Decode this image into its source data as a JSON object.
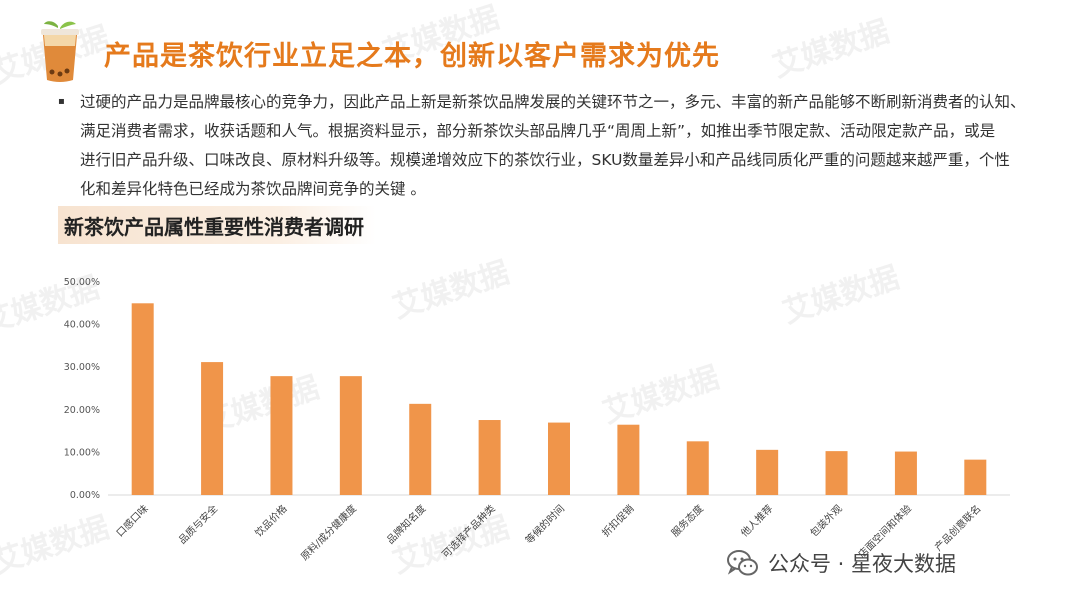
{
  "header": {
    "title": "产品是茶饮行业立足之本，创新以客户需求为优先"
  },
  "intro": {
    "bullet": "▪",
    "lines": [
      "过硬的产品力是品牌最核心的竞争力，因此产品上新是新茶饮品牌发展的关键环节之一，多元、丰富的新产品能够不断刷新消费者的认知、",
      "满足消费者需求，收获话题和人气。根据资料显示，部分新茶饮头部品牌几乎“周周上新”，如推出季节限定款、活动限定款产品，或是",
      "进行旧产品升级、口味改良、原材料升级等。规模递增效应下的茶饮行业，SKU数量差异小和产品线同质化严重的问题越来越严重，个性",
      "化和差异化特色已经成为茶饮品牌间竞争的关键 。"
    ]
  },
  "section": {
    "label": "新茶饮产品属性重要性消费者调研"
  },
  "chart_data": {
    "type": "bar",
    "title": "",
    "xlabel": "",
    "ylabel": "",
    "ylim": [
      0,
      50
    ],
    "yticks": [
      "0.00%",
      "10.00%",
      "20.00%",
      "30.00%",
      "40.00%",
      "50.00%"
    ],
    "categories": [
      "口感口味",
      "品质与安全",
      "饮品价格",
      "原料/成分健康度",
      "品牌知名度",
      "可选择产品种类",
      "等候的时间",
      "折扣促销",
      "服务态度",
      "他人推荐",
      "包装外观",
      "店面空间和体验",
      "产品创意联名"
    ],
    "values": [
      45.0,
      31.2,
      27.9,
      27.9,
      21.4,
      17.6,
      17.0,
      16.5,
      12.6,
      10.6,
      10.3,
      10.2,
      8.3
    ],
    "bar_color": "#f0954a",
    "grid": false,
    "legend": "none"
  },
  "footer": {
    "account": "公众号 · 星夜大数据"
  },
  "watermark": {
    "text": "艾媒数据"
  },
  "colors": {
    "accent": "#e57a1c",
    "bar": "#f0954a",
    "label_bg": "#f7e3d0"
  },
  "icons": [
    "milk-tea-cup-icon",
    "wechat-icon"
  ]
}
